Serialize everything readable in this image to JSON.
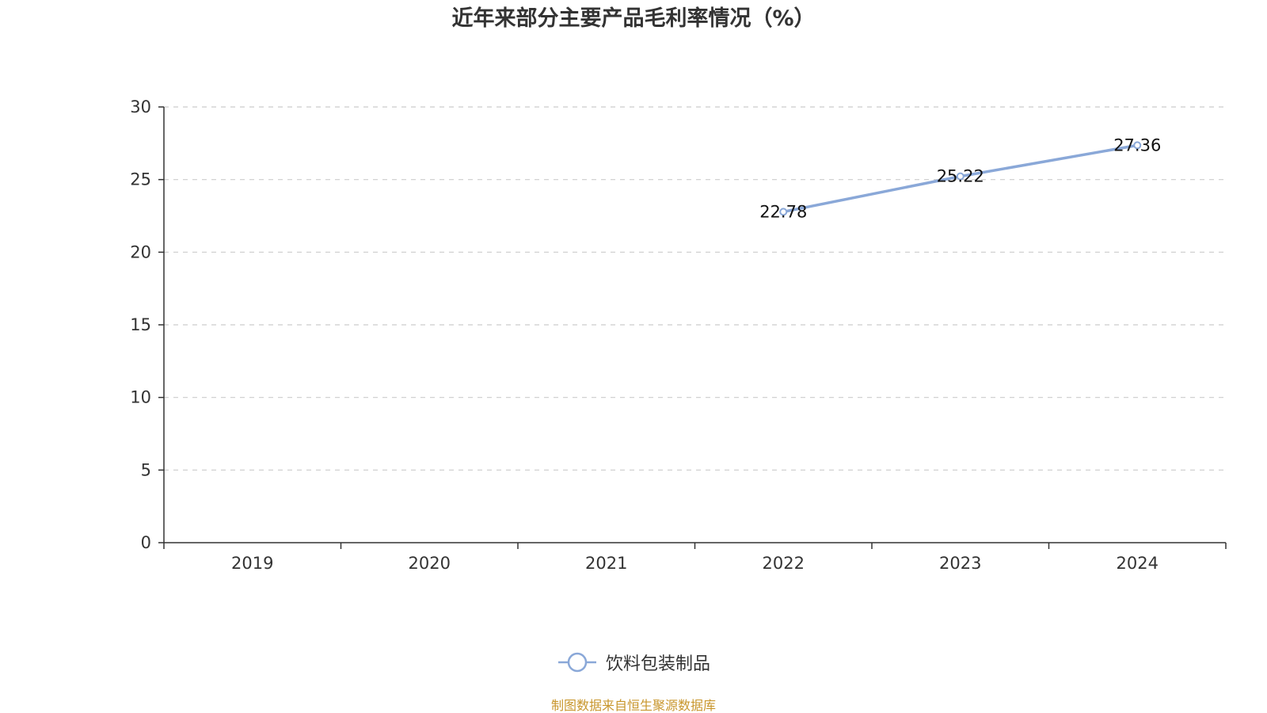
{
  "title": "近年来部分主要产品毛利率情况（%）",
  "source_note": "制图数据来自恒生聚源数据库",
  "colors": {
    "series": "#8aa8d8",
    "axis": "#333333",
    "grid": "#cccccc",
    "source_note": "#c8962c"
  },
  "legend": {
    "icon": "circle-line-marker-icon"
  },
  "chart_data": {
    "type": "line",
    "title": "近年来部分主要产品毛利率情况（%）",
    "xlabel": "",
    "ylabel": "",
    "categories": [
      "2019",
      "2020",
      "2021",
      "2022",
      "2023",
      "2024"
    ],
    "ylim": [
      0,
      30
    ],
    "yticks": [
      "0",
      "5",
      "10",
      "15",
      "20",
      "25",
      "30"
    ],
    "grid": true,
    "legend_position": "bottom",
    "series": [
      {
        "name": "饮料包装制品",
        "values": [
          null,
          null,
          null,
          22.78,
          25.22,
          27.36
        ],
        "labels": [
          "",
          "",
          "",
          "22.78",
          "25.22",
          "27.36"
        ]
      }
    ]
  }
}
